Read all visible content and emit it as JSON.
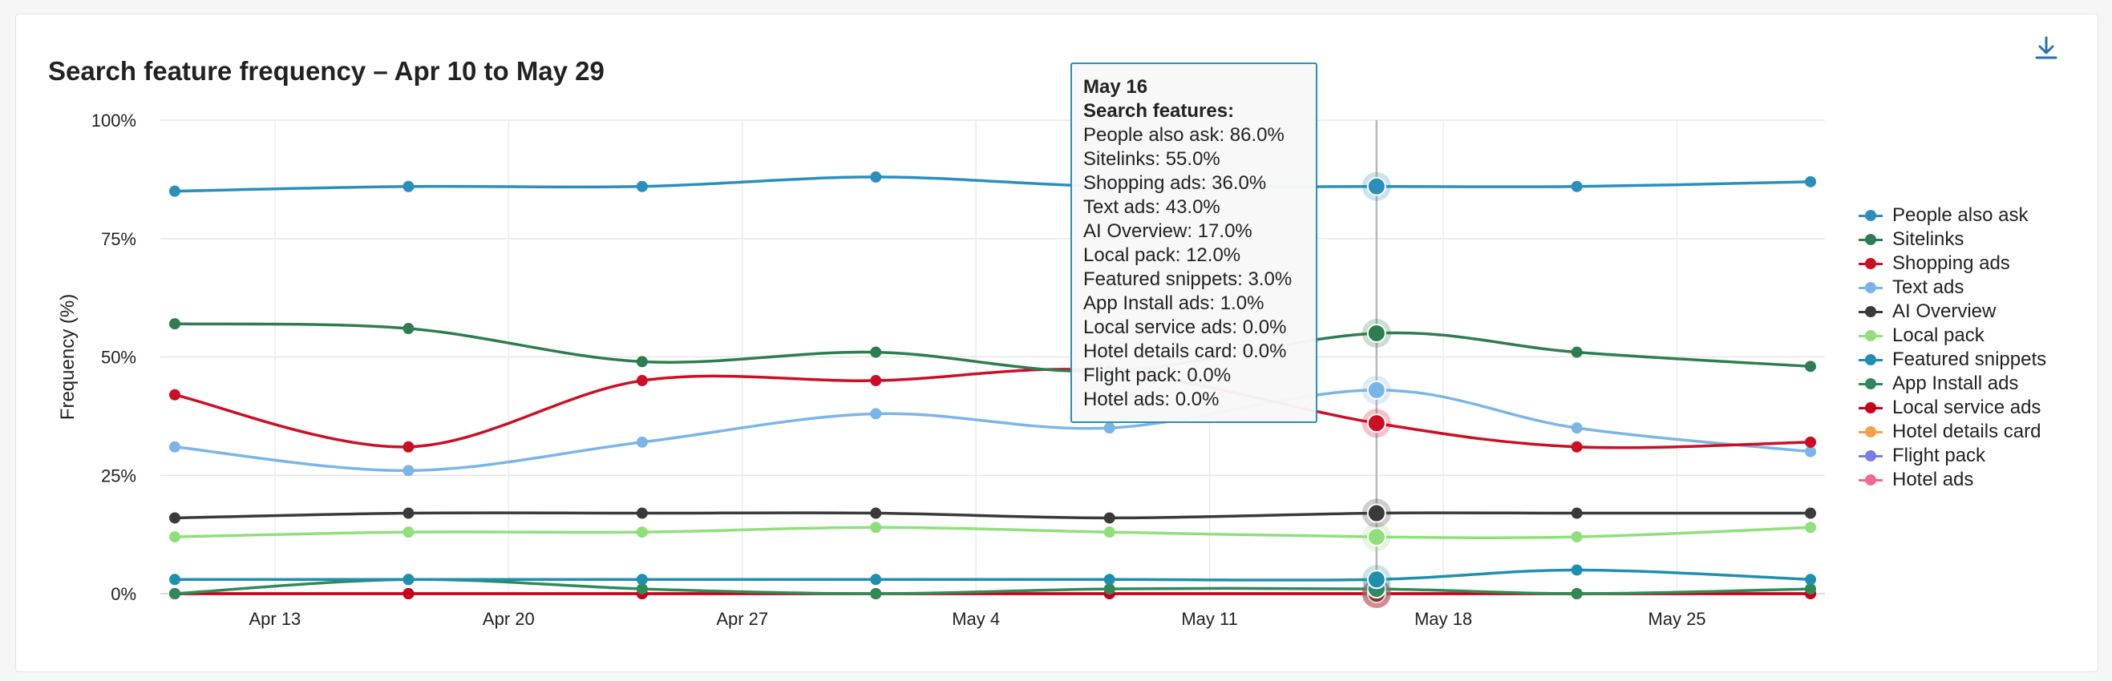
{
  "chart_data": {
    "type": "line",
    "title": "Search feature frequency – Apr 10 to May 29",
    "ylabel": "Frequency (%)",
    "xlabel": "",
    "ylim": [
      0,
      100
    ],
    "y_ticks": [
      "0%",
      "25%",
      "50%",
      "75%",
      "100%"
    ],
    "x_ticks": [
      "Apr 13",
      "Apr 20",
      "Apr 27",
      "May 4",
      "May 11",
      "May 18",
      "May 25"
    ],
    "x": [
      "Apr 10",
      "Apr 17",
      "Apr 24",
      "May 1",
      "May 8",
      "May 16",
      "May 22",
      "May 29"
    ],
    "grid": true,
    "legend_position": "right",
    "series": [
      {
        "name": "People also ask",
        "color": "#2a8fbd",
        "values": [
          85,
          86,
          86,
          88,
          86,
          86,
          86,
          87
        ]
      },
      {
        "name": "Sitelinks",
        "color": "#2e7d4f",
        "values": [
          57,
          56,
          49,
          51,
          47,
          55,
          51,
          48
        ]
      },
      {
        "name": "Shopping ads",
        "color": "#cc0e24",
        "values": [
          42,
          31,
          45,
          45,
          47,
          36,
          31,
          32
        ]
      },
      {
        "name": "Text ads",
        "color": "#7bb5e8",
        "values": [
          31,
          26,
          32,
          38,
          35,
          43,
          35,
          30
        ]
      },
      {
        "name": "AI Overview",
        "color": "#3a3a3a",
        "values": [
          16,
          17,
          17,
          17,
          16,
          17,
          17,
          17
        ]
      },
      {
        "name": "Local pack",
        "color": "#8fe07a",
        "values": [
          12,
          13,
          13,
          14,
          13,
          12,
          12,
          14
        ]
      },
      {
        "name": "Featured snippets",
        "color": "#1f8fb0",
        "values": [
          3,
          3,
          3,
          3,
          3,
          3,
          5,
          3
        ]
      },
      {
        "name": "App Install ads",
        "color": "#2e8b57",
        "values": [
          0,
          3,
          1,
          0,
          1,
          1,
          0,
          1
        ]
      },
      {
        "name": "Local service ads",
        "color": "#c9001c",
        "values": [
          0,
          0,
          0,
          0,
          0,
          0,
          0,
          0
        ]
      },
      {
        "name": "Hotel details card",
        "color": "#f5a04a",
        "values": [
          0,
          0,
          0,
          0,
          0,
          0,
          0,
          0
        ]
      },
      {
        "name": "Flight pack",
        "color": "#7b7be8",
        "values": [
          0,
          0,
          0,
          0,
          0,
          0,
          0,
          0
        ]
      },
      {
        "name": "Hotel ads",
        "color": "#f06a8f",
        "values": [
          0,
          0,
          0,
          0,
          0,
          0,
          0,
          0
        ]
      }
    ],
    "hover_index": 5
  },
  "tooltip": {
    "date": "May 16",
    "heading": "Search features:",
    "rows": [
      "People also ask: 86.0%",
      "Sitelinks: 55.0%",
      "Shopping ads: 36.0%",
      "Text ads: 43.0%",
      "AI Overview: 17.0%",
      "Local pack: 12.0%",
      "Featured snippets: 3.0%",
      "App Install ads: 1.0%",
      "Local service ads: 0.0%",
      "Hotel details card: 0.0%",
      "Flight pack: 0.0%",
      "Hotel ads: 0.0%"
    ]
  },
  "icons": {
    "download": "download-icon"
  }
}
